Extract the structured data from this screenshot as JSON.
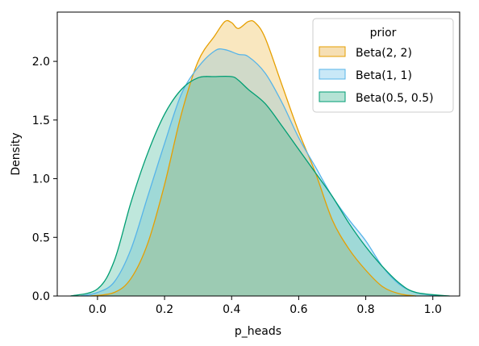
{
  "chart_data": {
    "type": "area",
    "title": "",
    "xlabel": "p_heads",
    "ylabel": "Density",
    "xlim": [
      -0.12,
      1.08
    ],
    "ylim": [
      0,
      2.42
    ],
    "x_ticks": [
      "0.0",
      "0.2",
      "0.4",
      "0.6",
      "0.8",
      "1.0"
    ],
    "y_ticks": [
      "0.0",
      "0.5",
      "1.0",
      "1.5",
      "2.0"
    ],
    "grid": false,
    "legend": {
      "title": "prior",
      "placement": "top-right"
    },
    "series": [
      {
        "name": "Beta(2, 2)",
        "color": "#E69F00",
        "fill": "#F6DFB4",
        "x": [
          -0.02,
          0.05,
          0.1,
          0.15,
          0.2,
          0.25,
          0.3,
          0.35,
          0.38,
          0.4,
          0.42,
          0.45,
          0.47,
          0.5,
          0.55,
          0.6,
          0.65,
          0.7,
          0.75,
          0.8,
          0.85,
          0.9,
          0.95
        ],
        "y": [
          0.0,
          0.03,
          0.15,
          0.45,
          0.95,
          1.55,
          2.0,
          2.22,
          2.34,
          2.33,
          2.28,
          2.34,
          2.33,
          2.2,
          1.8,
          1.4,
          1.05,
          0.65,
          0.4,
          0.22,
          0.08,
          0.02,
          0.0
        ]
      },
      {
        "name": "Beta(1, 1)",
        "color": "#56B4E9",
        "fill": "#C9E8F7",
        "x": [
          -0.05,
          0.0,
          0.05,
          0.1,
          0.15,
          0.2,
          0.25,
          0.3,
          0.35,
          0.38,
          0.42,
          0.45,
          0.5,
          0.55,
          0.6,
          0.65,
          0.7,
          0.75,
          0.8,
          0.85,
          0.9,
          0.95,
          1.02
        ],
        "y": [
          0.0,
          0.03,
          0.12,
          0.4,
          0.85,
          1.3,
          1.72,
          1.95,
          2.09,
          2.1,
          2.06,
          2.04,
          1.9,
          1.65,
          1.35,
          1.1,
          0.85,
          0.65,
          0.47,
          0.25,
          0.1,
          0.03,
          0.0
        ]
      },
      {
        "name": "Beta(0.5, 0.5)",
        "color": "#009E73",
        "fill": "#B5E3D5",
        "x": [
          -0.08,
          0.0,
          0.05,
          0.1,
          0.15,
          0.2,
          0.25,
          0.3,
          0.35,
          0.4,
          0.42,
          0.45,
          0.5,
          0.55,
          0.6,
          0.65,
          0.7,
          0.75,
          0.8,
          0.85,
          0.9,
          0.95,
          1.05
        ],
        "y": [
          0.0,
          0.06,
          0.3,
          0.8,
          1.22,
          1.55,
          1.76,
          1.86,
          1.87,
          1.87,
          1.84,
          1.76,
          1.64,
          1.45,
          1.25,
          1.05,
          0.85,
          0.62,
          0.42,
          0.25,
          0.11,
          0.03,
          0.0
        ]
      }
    ]
  }
}
